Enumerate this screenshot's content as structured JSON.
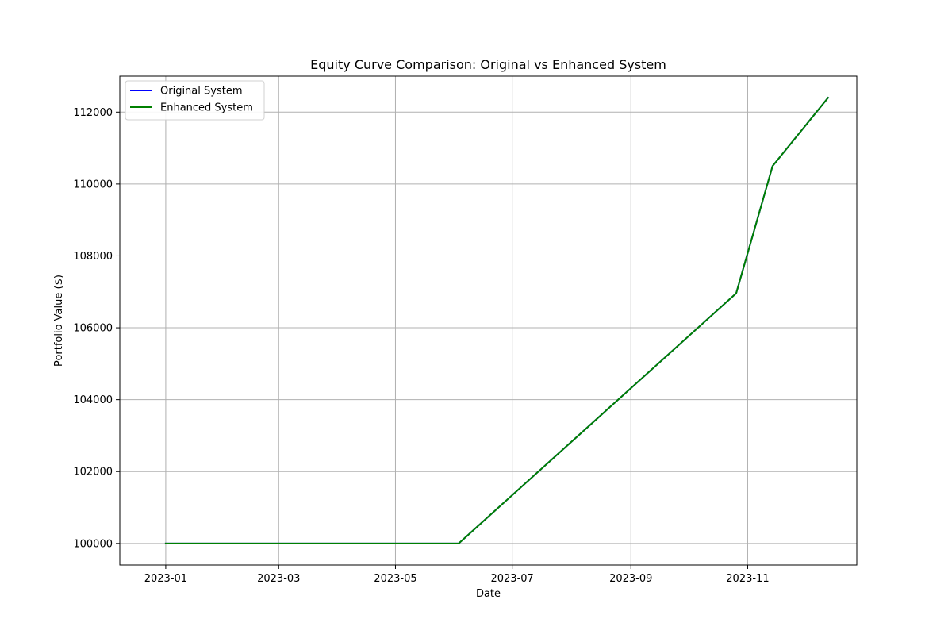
{
  "chart_data": {
    "type": "line",
    "title": "Equity Curve Comparison: Original vs Enhanced System",
    "xlabel": "Date",
    "ylabel": "Portfolio Value ($)",
    "x_type": "date",
    "xlim": [
      "2022-12-08",
      "2023-12-28"
    ],
    "ylim": [
      99400,
      113000
    ],
    "x_ticks": [
      "2023-01",
      "2023-03",
      "2023-05",
      "2023-07",
      "2023-09",
      "2023-11"
    ],
    "y_ticks": [
      100000,
      102000,
      104000,
      106000,
      108000,
      110000,
      112000
    ],
    "grid": true,
    "legend_position": "upper-left",
    "series": [
      {
        "name": "Original System",
        "color": "#0000ff",
        "points": [
          [
            "2023-01-01",
            100000
          ],
          [
            "2023-06-03",
            100000
          ],
          [
            "2023-10-26",
            106960
          ],
          [
            "2023-11-14",
            110500
          ],
          [
            "2023-12-13",
            112400
          ]
        ]
      },
      {
        "name": "Enhanced System",
        "color": "#008000",
        "points": [
          [
            "2023-01-01",
            100000
          ],
          [
            "2023-06-03",
            100000
          ],
          [
            "2023-10-26",
            106960
          ],
          [
            "2023-11-14",
            110500
          ],
          [
            "2023-12-13",
            112400
          ]
        ]
      }
    ]
  }
}
